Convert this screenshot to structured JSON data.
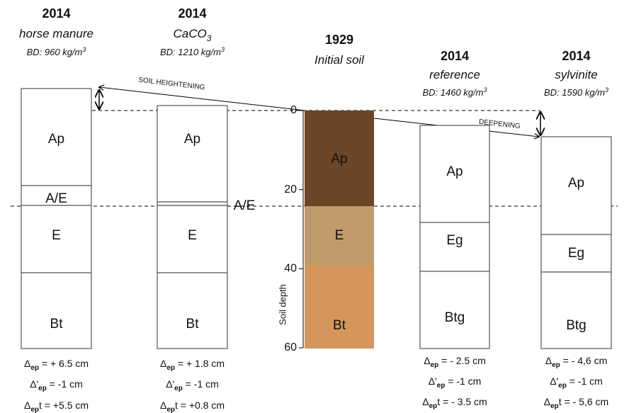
{
  "columns": [
    {
      "year": "2014",
      "treatment": "horse manure",
      "bd": "BD: 960 kg/m",
      "bd_exp": "3",
      "horizons": [
        "Ap",
        "A/E",
        "E",
        "Bt"
      ],
      "deltas": [
        {
          "symbol": "Δ",
          "sub": "ep",
          "text": " = + 6.5 cm"
        },
        {
          "symbol": "Δ′",
          "sub": "ep",
          "text": " = -1 cm"
        },
        {
          "symbol": "Δ",
          "sub": "ep",
          "text": "t = +5.5 cm"
        }
      ]
    },
    {
      "year": "2014",
      "treatment": "CaCO",
      "treatment_sub": "3",
      "bd": "BD: 1210 kg/m",
      "bd_exp": "3",
      "horizons": [
        "Ap",
        "A/E",
        "E",
        "Bt"
      ],
      "deltas": [
        {
          "symbol": "Δ",
          "sub": "ep",
          "text": " = + 1.8 cm"
        },
        {
          "symbol": "Δ′",
          "sub": "ep",
          "text": " = -1 cm"
        },
        {
          "symbol": "Δ",
          "sub": "ep",
          "text": "t = +0.8 cm"
        }
      ]
    },
    {
      "year": "1929",
      "treatment": "Initial soil",
      "horizons": [
        "Ap",
        "E",
        "Bt"
      ]
    },
    {
      "year": "2014",
      "treatment": "reference",
      "bd": "BD: 1460 kg/m",
      "bd_exp": "3",
      "horizons": [
        "Ap",
        "Eg",
        "Btg"
      ],
      "deltas": [
        {
          "symbol": "Δ",
          "sub": "ep",
          "text": " = - 2.5 cm"
        },
        {
          "symbol": "Δ′",
          "sub": "ep",
          "text": " = -1 cm"
        },
        {
          "symbol": "Δ",
          "sub": "ep",
          "text": "t = - 3.5 cm"
        }
      ]
    },
    {
      "year": "2014",
      "treatment": "sylvinite",
      "bd": "BD: 1590 kg/m",
      "bd_exp": "3",
      "horizons": [
        "Ap",
        "Eg",
        "Btg"
      ],
      "deltas": [
        {
          "symbol": "Δ",
          "sub": "ep",
          "text": " = - 4,6 cm"
        },
        {
          "symbol": "Δ′",
          "sub": "ep",
          "text": " = -1 cm"
        },
        {
          "symbol": "Δ",
          "sub": "ep",
          "text": "t = - 5,6 cm"
        }
      ]
    }
  ],
  "depth_axis": {
    "label": "Soil depth",
    "ticks": [
      0,
      20,
      40,
      60
    ]
  },
  "annotations": {
    "heightening": "SOIL HEIGHTENING",
    "deepening": "DEEPENING"
  }
}
